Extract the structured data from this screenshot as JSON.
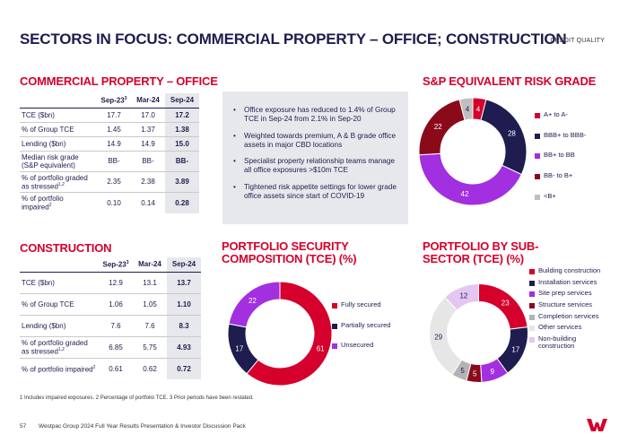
{
  "header": {
    "title": "SECTORS IN FOCUS: COMMERCIAL PROPERTY – OFFICE; CONSTRUCTION",
    "tag": "CREDIT QUALITY"
  },
  "cpo": {
    "heading": "COMMERCIAL PROPERTY – OFFICE",
    "columns": [
      "Sep-23",
      "Mar-24",
      "Sep-24"
    ],
    "col_sup": "3",
    "rows": [
      {
        "label": "TCE ($bn)",
        "values": [
          "17.7",
          "17.0",
          "17.2"
        ]
      },
      {
        "label": "% of Group TCE",
        "values": [
          "1.45",
          "1.37",
          "1.38"
        ]
      },
      {
        "label": "Lending ($bn)",
        "values": [
          "14.9",
          "14.9",
          "15.0"
        ]
      },
      {
        "label": "Median risk grade (S&P equivalent)",
        "values": [
          "BB-",
          "BB-",
          "BB-"
        ]
      },
      {
        "label": "% of portfolio graded as stressed",
        "sup": "1,2",
        "values": [
          "2.35",
          "2.38",
          "3.89"
        ]
      },
      {
        "label": "% of portfolio impaired",
        "sup": "2",
        "values": [
          "0.10",
          "0.14",
          "0.28"
        ]
      }
    ]
  },
  "bullets": [
    "Office exposure has reduced to 1.4% of Group TCE in Sep-24 from 2.1% in Sep-20",
    "Weighted towards premium, A & B grade office assets in major CBD locations",
    "Specialist property relationship teams manage all office exposures >$10m TCE",
    "Tightened risk appetite settings for lower grade office assets since start of COVID-19"
  ],
  "construction": {
    "heading": "CONSTRUCTION",
    "columns": [
      "Sep-23",
      "Mar-24",
      "Sep-24"
    ],
    "col_sup": "3",
    "rows": [
      {
        "label": "TCE ($bn)",
        "values": [
          "12.9",
          "13.1",
          "13.7"
        ]
      },
      {
        "label": "% of Group TCE",
        "values": [
          "1.06",
          "1.05",
          "1.10"
        ]
      },
      {
        "label": "Lending ($bn)",
        "values": [
          "7.6",
          "7.6",
          "8.3"
        ]
      },
      {
        "label": "% of portfolio graded as stressed",
        "sup": "1,2",
        "values": [
          "6.85",
          "5.75",
          "4.93"
        ]
      },
      {
        "label": "% of portfolio impaired",
        "sup": "2",
        "values": [
          "0.61",
          "0.62",
          "0.72"
        ]
      }
    ]
  },
  "chart_data": [
    {
      "type": "pie",
      "title": "S&P EQUIVALENT RISK GRADE",
      "categories": [
        "A+ to A-",
        "BBB+ to BBB-",
        "BB+ to BB",
        "BB- to B+",
        "<B+"
      ],
      "values": [
        4,
        28,
        42,
        22,
        4
      ],
      "colors": [
        "#d5002b",
        "#1f1c4f",
        "#a22fe0",
        "#8b0a1a",
        "#bfbfbf"
      ],
      "donut": true
    },
    {
      "type": "pie",
      "title": "PORTFOLIO SECURITY COMPOSITION (TCE) (%)",
      "categories": [
        "Fully secured",
        "Partially secured",
        "Unsecured"
      ],
      "values": [
        61,
        17,
        22
      ],
      "colors": [
        "#d5002b",
        "#1f1c4f",
        "#a22fe0"
      ],
      "donut": true
    },
    {
      "type": "pie",
      "title": "PORTFOLIO BY SUB-SECTOR (TCE) (%)",
      "categories": [
        "Building construction",
        "Installation services",
        "Site prep services",
        "Structure services",
        "Completion services",
        "Other services",
        "Non-building construction"
      ],
      "values": [
        23,
        17,
        9,
        5,
        5,
        29,
        12
      ],
      "colors": [
        "#d5002b",
        "#1f1c4f",
        "#a22fe0",
        "#8b0a1a",
        "#b3b3b3",
        "#e6e6e6",
        "#e3c6f2"
      ],
      "label_colors": [
        "#ffffff",
        "#ffffff",
        "#ffffff",
        "#ffffff",
        "#1f1c4f",
        "#1f1c4f",
        "#1f1c4f"
      ],
      "donut": true
    }
  ],
  "footnote": "1 Includes impaired exposures. 2 Percentage of portfolio TCE. 3 Prior periods have been restated.",
  "footer": {
    "page": "57",
    "text": "Westpac Group 2024 Full Year Results Presentation & Investor Discussion Pack"
  }
}
